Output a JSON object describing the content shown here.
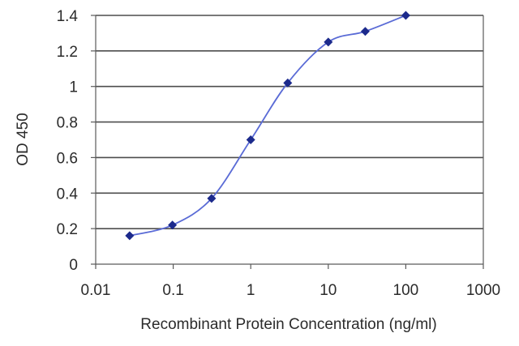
{
  "chart_data": {
    "type": "line",
    "title": "",
    "xlabel": "Recombinant Protein Concentration (ng/ml)",
    "ylabel": "OD 450",
    "x_scale": "log",
    "xlim": [
      0.01,
      1000
    ],
    "ylim": [
      0,
      1.4
    ],
    "x_ticks": [
      "0.01",
      "0.1",
      "1",
      "10",
      "100",
      "1000"
    ],
    "y_ticks": [
      "0",
      "0.2",
      "0.4",
      "0.6",
      "0.8",
      "1",
      "1.2",
      "1.4"
    ],
    "grid": "horizontal",
    "legend": "none",
    "series": [
      {
        "x": [
          0.0274,
          0.0977,
          0.3125,
          1,
          3,
          10,
          30,
          100
        ],
        "y": [
          0.16,
          0.22,
          0.37,
          0.7,
          1.02,
          1.25,
          1.31,
          1.4
        ]
      }
    ],
    "colors": {
      "line": "#5a6bd6",
      "marker": "#1c2a8c",
      "grid": "#4d4d4d",
      "axis": "#5a5a5a"
    }
  }
}
